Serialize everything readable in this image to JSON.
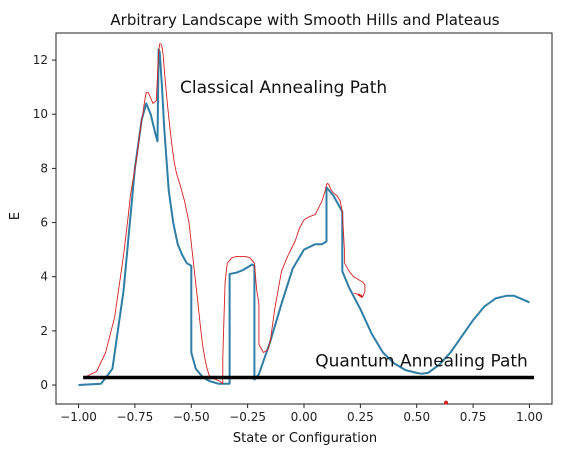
{
  "chart_data": {
    "type": "line",
    "title": "Arbitrary Landscape with Smooth Hills and Plateaus",
    "xlabel": "State or Configuration",
    "ylabel": "E",
    "xlim": [
      -1.1,
      1.1
    ],
    "ylim": [
      -0.7,
      13.0
    ],
    "xticks": [
      -1.0,
      -0.75,
      -0.5,
      -0.25,
      0.0,
      0.25,
      0.5,
      0.75,
      1.0
    ],
    "xtick_labels": [
      "−1.00",
      "−0.75",
      "−0.50",
      "−0.25",
      "0.00",
      "0.25",
      "0.50",
      "0.75",
      "1.00"
    ],
    "yticks": [
      0,
      2,
      4,
      6,
      8,
      10,
      12
    ],
    "ytick_labels": [
      "0",
      "2",
      "4",
      "6",
      "8",
      "10",
      "12"
    ],
    "grid": false,
    "colors": {
      "landscape": "#2e7ea6",
      "classical": "#d62020",
      "quantum": "#000000",
      "marker": "#d62020"
    },
    "series": [
      {
        "role": "landscape",
        "x": [
          -1.0,
          -0.9,
          -0.85,
          -0.8,
          -0.75,
          -0.72,
          -0.7,
          -0.68,
          -0.66,
          -0.65,
          -0.645,
          -0.64,
          -0.63,
          -0.62,
          -0.6,
          -0.58,
          -0.56,
          -0.54,
          -0.52,
          -0.5,
          -0.5,
          -0.48,
          -0.45,
          -0.42,
          -0.38,
          -0.37,
          -0.36,
          -0.33,
          -0.33,
          -0.3,
          -0.27,
          -0.23,
          -0.22,
          -0.22,
          -0.2,
          -0.15,
          -0.1,
          -0.05,
          0.0,
          0.05,
          0.08,
          0.1,
          0.1,
          0.13,
          0.17,
          0.17,
          0.2,
          0.25,
          0.3,
          0.35,
          0.4,
          0.45,
          0.5,
          0.52,
          0.55,
          0.6,
          0.65,
          0.7,
          0.75,
          0.8,
          0.85,
          0.9,
          0.93,
          0.96,
          1.0
        ],
        "y": [
          0.0,
          0.05,
          0.6,
          3.5,
          8.0,
          9.8,
          10.4,
          10.0,
          9.3,
          9.0,
          12.4,
          12.3,
          11.0,
          9.5,
          7.2,
          6.0,
          5.2,
          4.8,
          4.5,
          4.4,
          1.2,
          0.6,
          0.3,
          0.15,
          0.05,
          0.05,
          0.05,
          0.05,
          4.1,
          4.15,
          4.25,
          4.45,
          4.4,
          0.2,
          0.4,
          1.6,
          3.0,
          4.3,
          5.0,
          5.2,
          5.2,
          5.3,
          7.3,
          7.0,
          6.4,
          4.2,
          3.6,
          2.8,
          1.9,
          1.2,
          0.8,
          0.55,
          0.45,
          0.42,
          0.45,
          0.75,
          1.2,
          1.8,
          2.4,
          2.9,
          3.2,
          3.3,
          3.3,
          3.2,
          3.05
        ]
      },
      {
        "role": "classical",
        "x": [
          -0.97,
          -0.92,
          -0.88,
          -0.84,
          -0.8,
          -0.78,
          -0.77,
          -0.75,
          -0.74,
          -0.73,
          -0.72,
          -0.715,
          -0.71,
          -0.705,
          -0.7,
          -0.69,
          -0.68,
          -0.67,
          -0.655,
          -0.645,
          -0.64,
          -0.635,
          -0.63,
          -0.625,
          -0.615,
          -0.605,
          -0.595,
          -0.585,
          -0.575,
          -0.565,
          -0.55,
          -0.53,
          -0.51,
          -0.49,
          -0.47,
          -0.46,
          -0.45,
          -0.44,
          -0.43,
          -0.42,
          -0.405,
          -0.39,
          -0.375,
          -0.36,
          -0.36,
          -0.355,
          -0.35,
          -0.34,
          -0.32,
          -0.3,
          -0.28,
          -0.26,
          -0.24,
          -0.22,
          -0.21,
          -0.2,
          -0.2,
          -0.18,
          -0.16,
          -0.15,
          -0.13,
          -0.1,
          -0.07,
          -0.04,
          -0.02,
          0.0,
          0.02,
          0.05,
          0.08,
          0.095,
          0.1,
          0.105,
          0.11,
          0.12,
          0.13,
          0.145,
          0.16,
          0.17,
          0.175,
          0.18,
          0.18,
          0.2,
          0.22,
          0.24,
          0.26,
          0.27,
          0.27,
          0.26,
          0.25,
          0.24,
          0.22
        ],
        "y": [
          0.3,
          0.5,
          1.2,
          2.5,
          4.8,
          6.2,
          7.0,
          8.0,
          8.5,
          9.2,
          9.8,
          10.0,
          10.3,
          10.6,
          10.8,
          10.8,
          10.6,
          10.4,
          10.5,
          12.3,
          12.6,
          12.6,
          12.5,
          12.2,
          11.2,
          10.3,
          9.5,
          8.8,
          8.2,
          7.8,
          7.4,
          6.8,
          6.0,
          4.5,
          3.0,
          2.2,
          1.5,
          1.0,
          0.6,
          0.35,
          0.25,
          0.2,
          0.15,
          0.05,
          1.0,
          2.5,
          3.8,
          4.5,
          4.7,
          4.75,
          4.75,
          4.75,
          4.7,
          4.5,
          3.5,
          3.0,
          1.5,
          1.2,
          1.3,
          1.6,
          2.8,
          4.2,
          4.8,
          5.3,
          5.8,
          6.1,
          6.2,
          6.3,
          6.8,
          7.2,
          7.4,
          7.45,
          7.4,
          7.2,
          7.1,
          7.0,
          6.8,
          6.4,
          5.6,
          4.9,
          4.5,
          4.2,
          4.0,
          3.9,
          3.8,
          3.7,
          3.45,
          3.25,
          3.3,
          3.35,
          3.4
        ]
      },
      {
        "role": "quantum",
        "x": [
          -0.98,
          1.02
        ],
        "y": [
          0.28,
          0.28
        ]
      }
    ],
    "markers": [
      {
        "x": 0.63,
        "y": -0.65
      }
    ],
    "annotations": [
      {
        "text": "Classical Annealing Path",
        "x": -0.55,
        "y": 11.0
      },
      {
        "text": "Quantum Annealing Path",
        "x": 0.05,
        "y": 0.9
      }
    ]
  }
}
